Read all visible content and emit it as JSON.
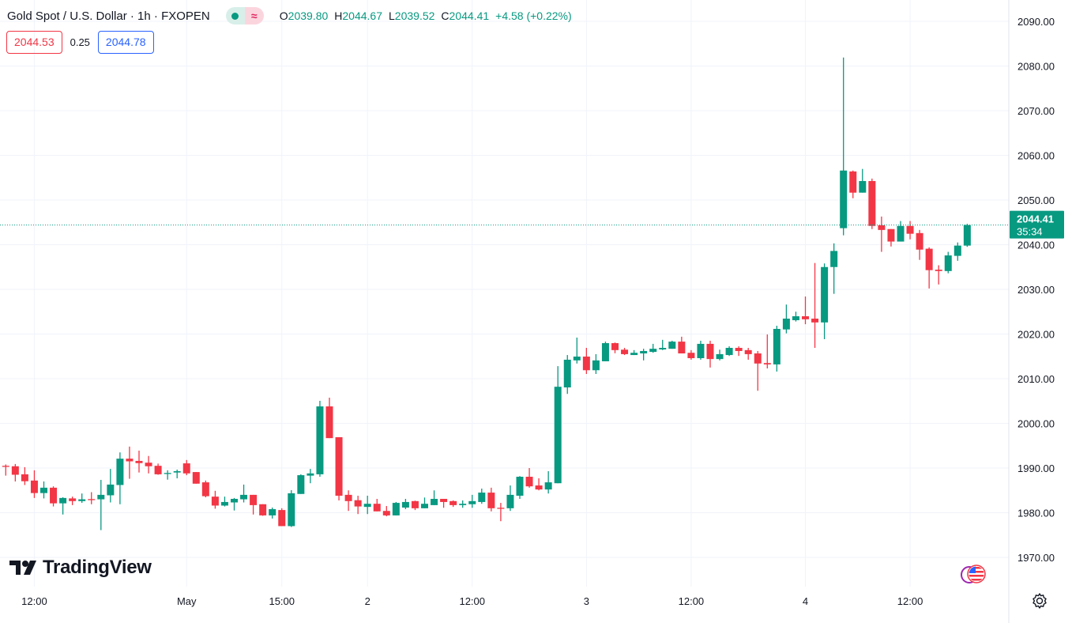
{
  "header": {
    "symbol_title": "Gold Spot / U.S. Dollar · 1h · FXOPEN",
    "status_icons": [
      "market-open-dot-icon",
      "approx-data-icon"
    ],
    "ohlc": {
      "o_label": "O",
      "o": "2039.80",
      "h_label": "H",
      "h": "2044.67",
      "l_label": "L",
      "l": "2039.52",
      "c_label": "C",
      "c": "2044.41",
      "change": "+4.58 (+0.22%)"
    },
    "sell_price": "2044.53",
    "spread": "0.25",
    "buy_price": "2044.78"
  },
  "branding": {
    "logo_text": "TradingView"
  },
  "icons": {
    "events": "economic-events-icon",
    "settings": "gear-icon"
  },
  "colors": {
    "up": "#089981",
    "down": "#F23645",
    "grid": "#f0f3fa",
    "axis_text": "#131722"
  },
  "current_price": {
    "price": "2044.41",
    "countdown": "35:34",
    "value": 2044.41
  },
  "chart_data": {
    "type": "candlestick",
    "title": "Gold Spot / U.S. Dollar · 1h · FXOPEN",
    "interval": "1h",
    "ylim": [
      1966,
      2092
    ],
    "y_ticks": [
      "2090.00",
      "2080.00",
      "2070.00",
      "2060.00",
      "2050.00",
      "2040.00",
      "2030.00",
      "2020.00",
      "2010.00",
      "2000.00",
      "1990.00",
      "1980.00",
      "1970.00"
    ],
    "y_tick_values": [
      2090,
      2080,
      2070,
      2060,
      2050,
      2040,
      2030,
      2020,
      2010,
      2000,
      1990,
      1980,
      1970
    ],
    "x_ticks": [
      {
        "label": "12:00",
        "index": 3
      },
      {
        "label": "May",
        "index": 19
      },
      {
        "label": "15:00",
        "index": 29
      },
      {
        "label": "2",
        "index": 38
      },
      {
        "label": "12:00",
        "index": 49
      },
      {
        "label": "3",
        "index": 61
      },
      {
        "label": "12:00",
        "index": 72
      },
      {
        "label": "4",
        "index": 84
      },
      {
        "label": "12:00",
        "index": 95
      }
    ],
    "grid": true,
    "candles_ohlc": [
      [
        1990.5,
        1990.8,
        1988.3,
        1990.3
      ],
      [
        1990.4,
        1990.9,
        1987.0,
        1988.5
      ],
      [
        1988.6,
        1990.2,
        1986.2,
        1987.05
      ],
      [
        1987.2,
        1989.5,
        1983.3,
        1984.4
      ],
      [
        1984.4,
        1987.0,
        1983.2,
        1985.6
      ],
      [
        1985.6,
        1985.9,
        1981.4,
        1982.1
      ],
      [
        1982.1,
        1983.45,
        1979.6,
        1983.3
      ],
      [
        1983.2,
        1983.6,
        1981.7,
        1982.6
      ],
      [
        1982.6,
        1984.3,
        1982.2,
        1983.0
      ],
      [
        1983.05,
        1984.6,
        1981.9,
        1983.0
      ],
      [
        1983.0,
        1987.35,
        1976.1,
        1984.0
      ],
      [
        1983.9,
        1989.8,
        1982.3,
        1986.3
      ],
      [
        1986.2,
        1993.5,
        1981.9,
        1992.1
      ],
      [
        1992.1,
        1994.8,
        1987.6,
        1991.5
      ],
      [
        1991.6,
        1993.9,
        1989.0,
        1991.1
      ],
      [
        1991.2,
        1992.7,
        1988.8,
        1990.4
      ],
      [
        1990.5,
        1991.0,
        1988.5,
        1988.6
      ],
      [
        1988.7,
        1989.5,
        1987.4,
        1988.9
      ],
      [
        1989.0,
        1989.65,
        1987.7,
        1989.3
      ],
      [
        1991.05,
        1991.8,
        1988.4,
        1988.8
      ],
      [
        1989.1,
        1989.1,
        1986.5,
        1986.5
      ],
      [
        1986.8,
        1987.2,
        1983.45,
        1983.7
      ],
      [
        1983.6,
        1984.9,
        1980.9,
        1981.6
      ],
      [
        1981.6,
        1983.6,
        1981.4,
        1982.4
      ],
      [
        1982.3,
        1983.3,
        1980.5,
        1983.1
      ],
      [
        1983.0,
        1986.3,
        1982.3,
        1984.0
      ],
      [
        1984.0,
        1984.0,
        1979.6,
        1981.7
      ],
      [
        1981.9,
        1981.9,
        1979.3,
        1979.4
      ],
      [
        1979.4,
        1981.15,
        1978.7,
        1980.8
      ],
      [
        1980.6,
        1981.0,
        1977.0,
        1977.0
      ],
      [
        1977.0,
        1985.05,
        1976.8,
        1984.35
      ],
      [
        1984.2,
        1988.6,
        1984.2,
        1988.4
      ],
      [
        1988.3,
        1989.8,
        1986.6,
        1988.8
      ],
      [
        1988.6,
        2005.05,
        1988.05,
        2003.8
      ],
      [
        2003.8,
        2005.75,
        1996.7,
        1996.7
      ],
      [
        1996.9,
        1996.9,
        1982.75,
        1983.8
      ],
      [
        1984.0,
        1985.0,
        1980.4,
        1982.6
      ],
      [
        1982.8,
        1983.8,
        1979.7,
        1981.4
      ],
      [
        1981.3,
        1983.8,
        1979.7,
        1982.0
      ],
      [
        1982.0,
        1983.1,
        1980.3,
        1980.3
      ],
      [
        1980.4,
        1981.5,
        1979.2,
        1979.4
      ],
      [
        1979.4,
        1982.4,
        1979.4,
        1982.2
      ],
      [
        1981.15,
        1983.1,
        1980.8,
        1982.4
      ],
      [
        1982.6,
        1982.7,
        1980.6,
        1981.0
      ],
      [
        1981.0,
        1983.4,
        1981.0,
        1982.0
      ],
      [
        1981.7,
        1985.0,
        1981.7,
        1983.1
      ],
      [
        1983.1,
        1983.1,
        1981.1,
        1982.4
      ],
      [
        1982.6,
        1982.75,
        1981.3,
        1981.7
      ],
      [
        1981.7,
        1982.75,
        1981.1,
        1982.0
      ],
      [
        1981.9,
        1984.0,
        1981.1,
        1982.6
      ],
      [
        1982.4,
        1985.4,
        1982.0,
        1984.5
      ],
      [
        1984.5,
        1985.6,
        1980.3,
        1981.0
      ],
      [
        1981.1,
        1982.2,
        1978.1,
        1981.0
      ],
      [
        1981.0,
        1986.1,
        1980.4,
        1984.0
      ],
      [
        1983.8,
        1988.2,
        1983.1,
        1988.05
      ],
      [
        1988.05,
        1990.0,
        1985.6,
        1985.9
      ],
      [
        1986.1,
        1987.7,
        1985.0,
        1985.2
      ],
      [
        1985.2,
        1989.3,
        1984.3,
        1986.8
      ],
      [
        1986.6,
        2012.8,
        1986.6,
        2008.2
      ],
      [
        2008.05,
        2015.3,
        2006.6,
        2014.25
      ],
      [
        2014.1,
        2019.2,
        2013.4,
        2014.95
      ],
      [
        2014.95,
        2016.9,
        2011.06,
        2011.9
      ],
      [
        2011.9,
        2015.5,
        2011.06,
        2014.1
      ],
      [
        2013.9,
        2018.3,
        2013.9,
        2017.96
      ],
      [
        2017.96,
        2018.1,
        2015.7,
        2016.4
      ],
      [
        2016.5,
        2016.9,
        2015.3,
        2015.5
      ],
      [
        2015.3,
        2016.4,
        2015.3,
        2015.8
      ],
      [
        2015.66,
        2016.7,
        2014.1,
        2016.2
      ],
      [
        2016.0,
        2017.8,
        2015.8,
        2016.7
      ],
      [
        2016.55,
        2018.7,
        2016.4,
        2016.9
      ],
      [
        2016.7,
        2018.5,
        2016.7,
        2018.3
      ],
      [
        2018.3,
        2019.4,
        2015.66,
        2015.66
      ],
      [
        2015.8,
        2016.4,
        2014.25,
        2014.6
      ],
      [
        2014.6,
        2018.5,
        2014.25,
        2017.8
      ],
      [
        2017.8,
        2018.5,
        2012.5,
        2014.4
      ],
      [
        2014.4,
        2016.5,
        2014.1,
        2015.5
      ],
      [
        2015.3,
        2017.25,
        2015.1,
        2016.9
      ],
      [
        2016.9,
        2017.25,
        2015.1,
        2016.2
      ],
      [
        2016.4,
        2016.9,
        2014.25,
        2015.5
      ],
      [
        2015.66,
        2016.2,
        2007.3,
        2013.4
      ],
      [
        2013.5,
        2019.9,
        2012.3,
        2013.2
      ],
      [
        2013.2,
        2021.85,
        2011.6,
        2021.15
      ],
      [
        2021.03,
        2026.6,
        2020.15,
        2023.45
      ],
      [
        2023.1,
        2025.0,
        2022.8,
        2023.98
      ],
      [
        2023.98,
        2028.4,
        2022.2,
        2023.3
      ],
      [
        2023.45,
        2035.9,
        2016.9,
        2022.6
      ],
      [
        2022.6,
        2035.8,
        2018.85,
        2035.0
      ],
      [
        2035.0,
        2040.3,
        2029.0,
        2038.6
      ],
      [
        2043.7,
        2081.9,
        2042.1,
        2056.6
      ],
      [
        2056.4,
        2056.6,
        2050.4,
        2051.65
      ],
      [
        2051.65,
        2056.96,
        2051.65,
        2054.25
      ],
      [
        2054.25,
        2054.8,
        2043.5,
        2044.2
      ],
      [
        2044.35,
        2046.3,
        2038.4,
        2043.3
      ],
      [
        2043.5,
        2043.5,
        2039.6,
        2040.7
      ],
      [
        2040.7,
        2045.3,
        2040.7,
        2044.2
      ],
      [
        2044.2,
        2045.3,
        2041.2,
        2042.45
      ],
      [
        2042.6,
        2043.3,
        2036.6,
        2038.9
      ],
      [
        2039.1,
        2039.4,
        2030.2,
        2034.3
      ],
      [
        2034.4,
        2035.4,
        2031.1,
        2034.1
      ],
      [
        2034.1,
        2038.4,
        2033.6,
        2037.6
      ],
      [
        2037.5,
        2040.5,
        2036.4,
        2039.8
      ],
      [
        2039.8,
        2044.67,
        2039.52,
        2044.41
      ]
    ]
  }
}
